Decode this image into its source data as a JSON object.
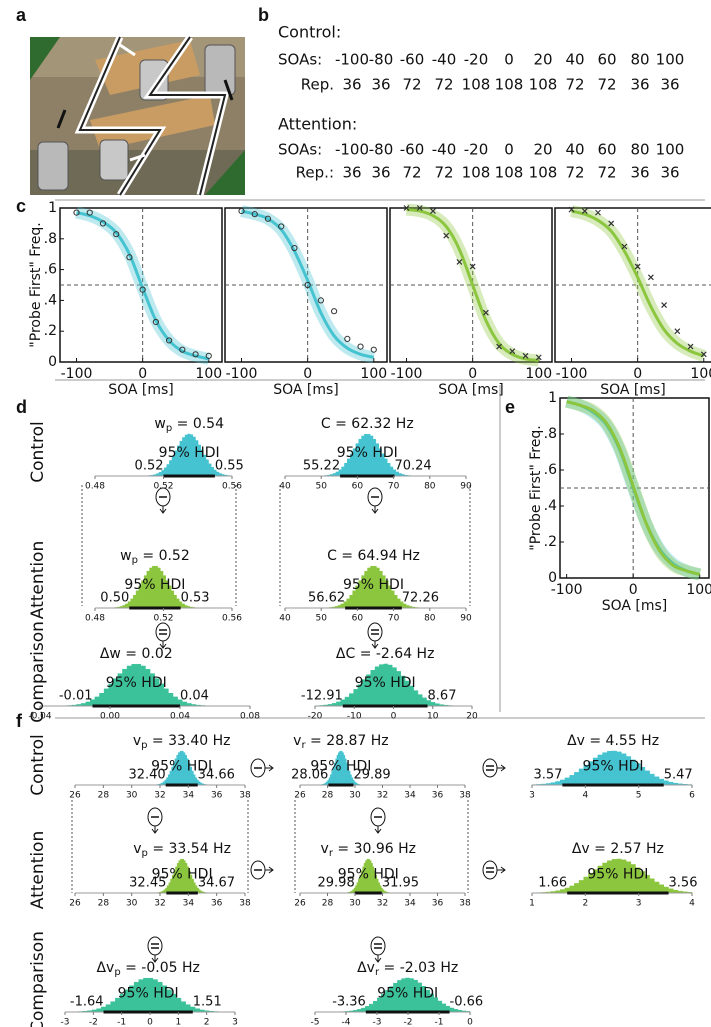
{
  "panel_labels": [
    "a",
    "b",
    "c",
    "d",
    "e",
    "f"
  ],
  "table": {
    "groups": [
      {
        "title": "Control:",
        "rows": [
          {
            "label": "SOAs:",
            "cells": [
              -100,
              -80,
              -60,
              -40,
              -20,
              0,
              20,
              40,
              60,
              80,
              100
            ]
          },
          {
            "label": "Rep.",
            "cells": [
              36,
              36,
              72,
              72,
              108,
              108,
              108,
              72,
              72,
              36,
              36
            ]
          }
        ]
      },
      {
        "title": "Attention:",
        "rows": [
          {
            "label": "SOAs:",
            "cells": [
              -100,
              -80,
              -60,
              -40,
              -20,
              0,
              20,
              40,
              60,
              80,
              100
            ]
          },
          {
            "label": "Rep.:",
            "cells": [
              36,
              36,
              72,
              72,
              108,
              108,
              108,
              72,
              72,
              36,
              36
            ]
          }
        ]
      }
    ]
  },
  "chart_data": [
    {
      "type": "line",
      "x": [
        -100,
        -80,
        -60,
        -40,
        -20,
        0,
        20,
        40,
        60,
        80,
        100
      ],
      "xlim": [
        -125,
        120
      ],
      "ylim": [
        0,
        1
      ],
      "xticks": [
        -100,
        0,
        100
      ],
      "yticks": [
        0,
        {
          "value": 0.2,
          "label": ".2"
        },
        {
          "value": 0.4,
          "label": ".4"
        },
        {
          "value": 0.6,
          "label": ".6"
        },
        {
          "value": 0.8,
          "label": ".8"
        },
        1
      ],
      "x_label": "SOA [ms]",
      "y_label": "\"Probe First\" Freq.",
      "guides": {
        "x": 0,
        "y": 0.5
      },
      "series": [
        {
          "color": "#45c3d0",
          "values": [
            0.97,
            0.95,
            0.91,
            0.84,
            0.7,
            0.48,
            0.27,
            0.14,
            0.07,
            0.04,
            0.02
          ]
        }
      ],
      "points": {
        "marker": "circle",
        "values": [
          0.97,
          0.97,
          0.9,
          0.83,
          0.68,
          0.47,
          0.26,
          0.14,
          0.08,
          0.05,
          0.04
        ]
      }
    },
    {
      "type": "line",
      "x": [
        -100,
        -80,
        -60,
        -40,
        -20,
        0,
        20,
        40,
        60,
        80,
        100
      ],
      "xlim": [
        -125,
        120
      ],
      "ylim": [
        0,
        1
      ],
      "xticks": [
        -100,
        0,
        100
      ],
      "x_label": "SOA [ms]",
      "guides": {
        "x": 0,
        "y": 0.5
      },
      "series": [
        {
          "color": "#45c3d0",
          "values": [
            0.98,
            0.96,
            0.93,
            0.86,
            0.72,
            0.53,
            0.32,
            0.17,
            0.09,
            0.05,
            0.03
          ]
        }
      ],
      "points": {
        "marker": "circle",
        "values": [
          0.98,
          0.96,
          0.93,
          0.88,
          0.74,
          0.5,
          0.4,
          0.33,
          0.15,
          0.1,
          0.08
        ]
      }
    },
    {
      "type": "line",
      "x": [
        -100,
        -80,
        -60,
        -40,
        -20,
        0,
        20,
        40,
        60,
        80,
        100
      ],
      "xlim": [
        -125,
        120
      ],
      "ylim": [
        0,
        1
      ],
      "xticks": [
        -100,
        0,
        100
      ],
      "x_label": "SOA [ms]",
      "guides": {
        "x": 0,
        "y": 0.5
      },
      "series": [
        {
          "color": "#8cc63f",
          "values": [
            0.99,
            0.98,
            0.95,
            0.88,
            0.73,
            0.5,
            0.27,
            0.12,
            0.05,
            0.02,
            0.01
          ]
        }
      ],
      "points": {
        "marker": "cross",
        "values": [
          1,
          1,
          0.98,
          0.82,
          0.65,
          0.62,
          0.32,
          0.1,
          0.07,
          0.04,
          0.03
        ]
      }
    },
    {
      "type": "line",
      "x": [
        -100,
        -80,
        -60,
        -40,
        -20,
        0,
        20,
        40,
        60,
        80,
        100
      ],
      "xlim": [
        -125,
        120
      ],
      "ylim": [
        0,
        1
      ],
      "xticks": [
        -100,
        0,
        100
      ],
      "x_label": "SOA [ms]",
      "guides": {
        "x": 0,
        "y": 0.5
      },
      "series": [
        {
          "color": "#8cc63f",
          "values": [
            0.98,
            0.96,
            0.92,
            0.85,
            0.72,
            0.55,
            0.36,
            0.21,
            0.12,
            0.07,
            0.04
          ]
        }
      ],
      "points": {
        "marker": "cross",
        "values": [
          0.99,
          0.98,
          0.97,
          0.9,
          0.75,
          0.62,
          0.55,
          0.37,
          0.2,
          0.1,
          0.05
        ]
      }
    },
    {
      "type": "line",
      "x": [
        -100,
        -80,
        -60,
        -40,
        -20,
        0,
        20,
        40,
        60,
        80,
        100
      ],
      "xlim": [
        -110,
        114
      ],
      "ylim": [
        0,
        1
      ],
      "xticks": [
        -100,
        0,
        100
      ],
      "yticks": [
        0,
        {
          "value": 0.2,
          "label": ".2"
        },
        {
          "value": 0.4,
          "label": ".4"
        },
        {
          "value": 0.6,
          "label": ".6"
        },
        {
          "value": 0.8,
          "label": ".8"
        },
        1
      ],
      "x_label": "SOA [ms]",
      "y_label": "\"Probe First\" Freq.",
      "guides": {
        "x": 0,
        "y": 0.5
      },
      "series": [
        {
          "color": "#45c3d0",
          "values": [
            0.98,
            0.96,
            0.92,
            0.85,
            0.71,
            0.5,
            0.3,
            0.16,
            0.08,
            0.04,
            0.02
          ]
        },
        {
          "color": "#8cc63f",
          "values": [
            0.98,
            0.96,
            0.93,
            0.86,
            0.72,
            0.51,
            0.3,
            0.15,
            0.07,
            0.04,
            0.02
          ]
        }
      ]
    }
  ],
  "panel_d": {
    "row_labels": [
      "Control",
      "Attention",
      "Comparison"
    ],
    "posteriors": [
      {
        "title": {
          "text": "w",
          "sub": "p",
          "rest": " = 0.54"
        },
        "hdi_label": "95% HDI",
        "hdi": [
          0.52,
          0.55
        ],
        "xlim": [
          0.48,
          0.56
        ],
        "xticks": [
          0.48,
          0.52,
          0.56
        ],
        "color": "#45c3d0"
      },
      {
        "title": {
          "text": "C = 62.32 Hz"
        },
        "hdi_label": "95% HDI",
        "hdi": [
          55.22,
          70.24
        ],
        "xlim": [
          40,
          90
        ],
        "xticks": [
          40,
          50,
          60,
          70,
          80,
          90
        ],
        "color": "#45c3d0"
      },
      {
        "title": {
          "text": "w",
          "sub": "p",
          "rest": " = 0.52"
        },
        "hdi_label": "95% HDI",
        "hdi": [
          {
            "value": 0.5,
            "label": "0.50"
          },
          0.53
        ],
        "xlim": [
          0.48,
          0.56
        ],
        "xticks": [
          0.48,
          0.52,
          0.56
        ],
        "color": "#8cc63f"
      },
      {
        "title": {
          "text": "C = 64.94 Hz"
        },
        "hdi_label": "95% HDI",
        "hdi": [
          56.62,
          72.26
        ],
        "xlim": [
          40,
          90
        ],
        "xticks": [
          40,
          50,
          60,
          70,
          80,
          90
        ],
        "color": "#8cc63f"
      },
      {
        "title": {
          "text": "Δw = 0.02"
        },
        "hdi_label": "95% HDI",
        "hdi": [
          -0.01,
          0.04
        ],
        "xlim": [
          -0.04,
          0.08
        ],
        "xticks": [
          -0.04,
          {
            "value": 0,
            "label": "0.00"
          },
          0.04,
          0.08
        ],
        "color": "#3cc29a"
      },
      {
        "title": {
          "text": "ΔC = -2.64 Hz"
        },
        "hdi_label": "95% HDI",
        "hdi": [
          -12.91,
          8.67
        ],
        "xlim": [
          -20,
          20
        ],
        "xticks": [
          -20,
          -10,
          0,
          10,
          20
        ],
        "color": "#3cc29a"
      }
    ]
  },
  "panel_f": {
    "row_labels": [
      "Control",
      "Attention",
      "Comparison"
    ],
    "posteriors": [
      {
        "title": {
          "text": "v",
          "sub": "p",
          "rest": " = 33.40 Hz"
        },
        "hdi_label": "95% HDI",
        "hdi": [
          {
            "value": 32.4,
            "label": "32.40"
          },
          34.66
        ],
        "xlim": [
          26,
          38
        ],
        "xticks": [
          26,
          28,
          30,
          32,
          34,
          36,
          38
        ],
        "color": "#45c3d0"
      },
      {
        "title": {
          "text": "v",
          "sub": "r",
          "rest": " = 28.87 Hz"
        },
        "hdi_label": "95% HDI",
        "hdi": [
          28.06,
          29.89
        ],
        "xlim": [
          26,
          38
        ],
        "xticks": [
          26,
          28,
          30,
          32,
          34,
          36,
          38
        ],
        "color": "#45c3d0"
      },
      {
        "title": {
          "text": "Δv = 4.55 Hz"
        },
        "hdi_label": "95% HDI",
        "hdi": [
          3.57,
          5.47
        ],
        "xlim": [
          3,
          6
        ],
        "xticks": [
          3,
          4,
          5,
          6
        ],
        "color": "#45c3d0"
      },
      {
        "title": {
          "text": "v",
          "sub": "p",
          "rest": " = 33.54 Hz"
        },
        "hdi_label": "95% HDI",
        "hdi": [
          32.45,
          34.67
        ],
        "xlim": [
          26,
          38
        ],
        "xticks": [
          26,
          28,
          30,
          32,
          34,
          36,
          38
        ],
        "color": "#8cc63f"
      },
      {
        "title": {
          "text": "v",
          "sub": "r",
          "rest": " = 30.96 Hz"
        },
        "hdi_label": "95% HDI",
        "hdi": [
          29.98,
          31.95
        ],
        "xlim": [
          26,
          38
        ],
        "xticks": [
          26,
          28,
          30,
          32,
          34,
          36,
          38
        ],
        "color": "#8cc63f"
      },
      {
        "title": {
          "text": "Δv = 2.57 Hz"
        },
        "hdi_label": "95% HDI",
        "hdi": [
          1.66,
          3.56
        ],
        "xlim": [
          1,
          4
        ],
        "xticks": [
          1,
          2,
          3,
          4
        ],
        "color": "#8cc63f"
      },
      {
        "title": {
          "text": "Δv",
          "sub": "p",
          "rest": " = -0.05 Hz"
        },
        "hdi_label": "95% HDI",
        "hdi": [
          -1.64,
          1.51
        ],
        "xlim": [
          -3,
          3
        ],
        "xticks": [
          -3,
          -2,
          -1,
          0,
          1,
          2,
          3
        ],
        "color": "#3cc29a"
      },
      {
        "title": {
          "text": "Δv",
          "sub": "r",
          "rest": " = -2.03 Hz"
        },
        "hdi_label": "95% HDI",
        "hdi": [
          -3.36,
          -0.66
        ],
        "xlim": [
          -5,
          0
        ],
        "xticks": [
          -5,
          -4,
          -3,
          -2,
          -1,
          0
        ],
        "color": "#3cc29a"
      }
    ]
  }
}
